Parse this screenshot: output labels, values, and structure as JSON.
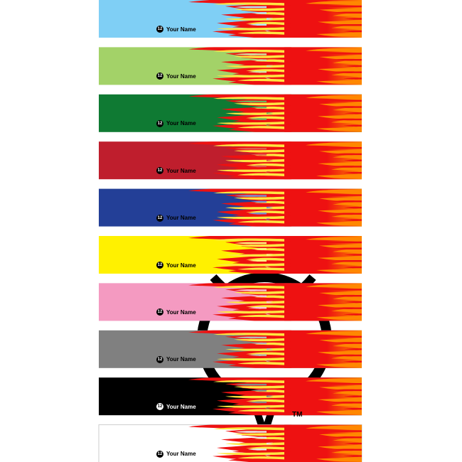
{
  "product": {
    "label_text": "Your Name",
    "badge_number": "12",
    "trademark": "TM"
  },
  "colors": {
    "flame_red": "#ee1111",
    "flame_orange": "#ff8800",
    "flame_yellow": "#ffe640",
    "flame_outline": "#f4f4a0"
  },
  "wraps": [
    {
      "name": "light-blue",
      "color": "#7fcff5",
      "tip": "#b8e4f8"
    },
    {
      "name": "light-green",
      "color": "#a3d268",
      "tip": "#cfe7a6"
    },
    {
      "name": "green",
      "color": "#0f7a33",
      "tip": "#6fb560"
    },
    {
      "name": "red",
      "color": "#bf1e2d",
      "tip": "#e35a4a"
    },
    {
      "name": "blue",
      "color": "#233f97",
      "tip": "#7a8fd0"
    },
    {
      "name": "yellow",
      "color": "#fff100",
      "tip": "#fff780"
    },
    {
      "name": "pink",
      "color": "#f49ac1",
      "tip": "#f8c6dc"
    },
    {
      "name": "gray",
      "color": "#808080",
      "tip": "#b8b8b8"
    },
    {
      "name": "black",
      "color": "#000000",
      "tip": "#888888"
    },
    {
      "name": "white",
      "color": "#ffffff",
      "tip": "#e8e8e8"
    }
  ]
}
